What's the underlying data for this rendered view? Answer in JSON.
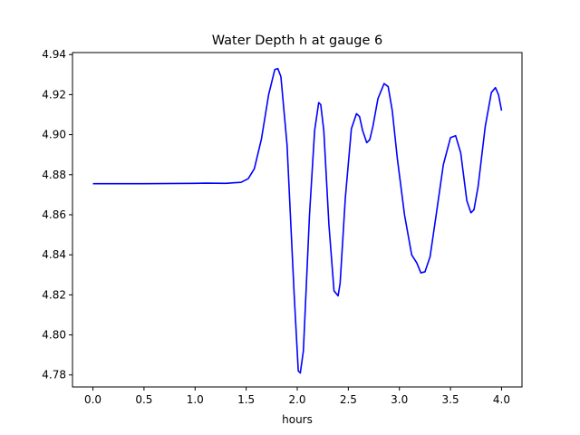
{
  "chart_data": {
    "type": "line",
    "title": "Water Depth h at gauge 6",
    "xlabel": "hours",
    "ylabel": "",
    "xlim": [
      -0.2,
      4.2
    ],
    "ylim": [
      4.774,
      4.941
    ],
    "xticks": [
      0.0,
      0.5,
      1.0,
      1.5,
      2.0,
      2.5,
      3.0,
      3.5,
      4.0
    ],
    "xtick_labels": [
      "0.0",
      "0.5",
      "1.0",
      "1.5",
      "2.0",
      "2.5",
      "3.0",
      "3.5",
      "4.0"
    ],
    "yticks": [
      4.78,
      4.8,
      4.82,
      4.84,
      4.86,
      4.88,
      4.9,
      4.92,
      4.94
    ],
    "ytick_labels": [
      "4.78",
      "4.80",
      "4.82",
      "4.84",
      "4.86",
      "4.88",
      "4.90",
      "4.92",
      "4.94"
    ],
    "grid": false,
    "legend": "none",
    "series": [
      {
        "color": "#0000ff",
        "x": [
          0.0,
          0.5,
          1.0,
          1.1,
          1.3,
          1.45,
          1.52,
          1.58,
          1.65,
          1.72,
          1.78,
          1.81,
          1.84,
          1.9,
          1.97,
          2.01,
          2.03,
          2.06,
          2.12,
          2.17,
          2.21,
          2.23,
          2.26,
          2.31,
          2.36,
          2.4,
          2.42,
          2.47,
          2.53,
          2.58,
          2.61,
          2.64,
          2.68,
          2.71,
          2.74,
          2.79,
          2.85,
          2.89,
          2.93,
          2.98,
          3.05,
          3.12,
          3.17,
          3.21,
          3.25,
          3.3,
          3.36,
          3.43,
          3.5,
          3.55,
          3.6,
          3.66,
          3.7,
          3.73,
          3.77,
          3.84,
          3.9,
          3.94,
          3.97,
          4.0
        ],
        "y": [
          4.8755,
          4.8755,
          4.8757,
          4.8758,
          4.8757,
          4.8762,
          4.878,
          4.883,
          4.898,
          4.92,
          4.9325,
          4.933,
          4.929,
          4.895,
          4.82,
          4.782,
          4.781,
          4.792,
          4.86,
          4.902,
          4.916,
          4.915,
          4.902,
          4.855,
          4.822,
          4.8195,
          4.826,
          4.868,
          4.903,
          4.9105,
          4.909,
          4.902,
          4.896,
          4.8975,
          4.904,
          4.918,
          4.9255,
          4.924,
          4.912,
          4.888,
          4.86,
          4.84,
          4.836,
          4.831,
          4.8315,
          4.839,
          4.86,
          4.885,
          4.8985,
          4.8995,
          4.891,
          4.867,
          4.861,
          4.8625,
          4.874,
          4.904,
          4.921,
          4.9235,
          4.92,
          4.912
        ]
      }
    ]
  }
}
